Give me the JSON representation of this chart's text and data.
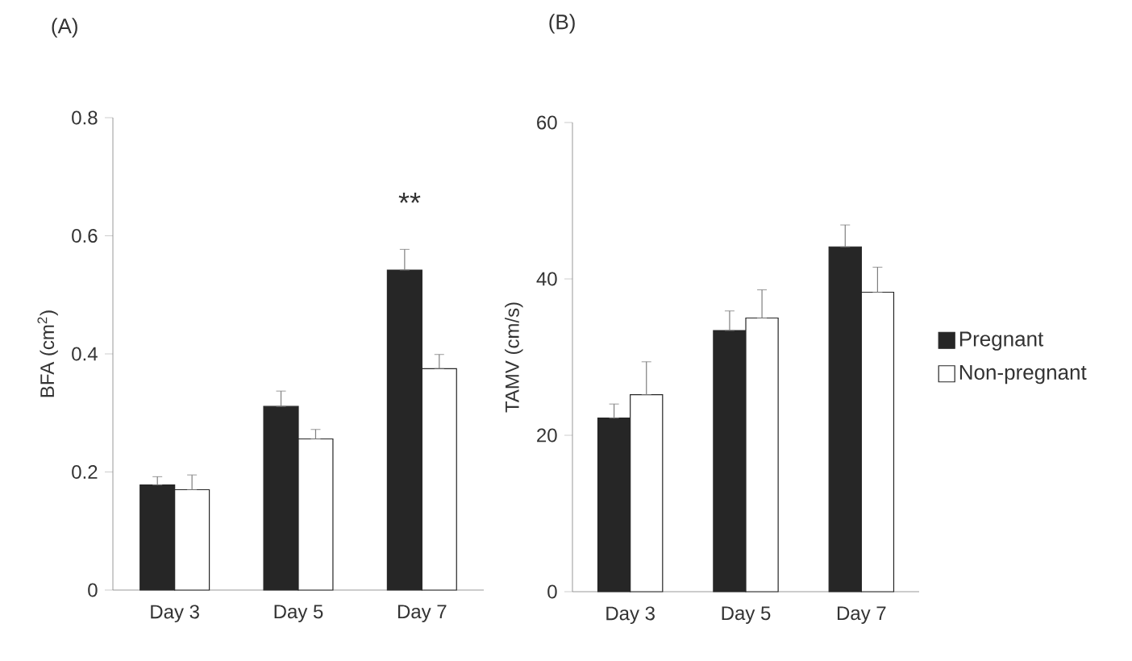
{
  "chart_data": [
    {
      "type": "bar",
      "title": "(A)",
      "ylabel": "BFA (cm$^{2}$)",
      "categories": [
        "Day 3",
        "Day 5",
        "Day 7"
      ],
      "ylim": [
        0,
        0.8
      ],
      "yticks": [
        0,
        0.2,
        0.4,
        0.6,
        0.8
      ],
      "series": [
        {
          "color": "#262626",
          "values": [
            0.178,
            0.311,
            0.542
          ],
          "errors": [
            [
              0.178,
              0.192
            ],
            [
              0.311,
              0.337
            ],
            [
              0.542,
              0.577
            ]
          ]
        },
        {
          "color": "#ffffff",
          "values": [
            0.17,
            0.256,
            0.375
          ],
          "errors": [
            [
              0.17,
              0.195
            ],
            [
              0.256,
              0.272
            ],
            [
              0.375,
              0.399
            ]
          ]
        }
      ],
      "annotations": [
        "**"
      ]
    },
    {
      "type": "bar",
      "title": "(B)",
      "ylabel": "TAMV (cm/s)",
      "categories": [
        "Day 3",
        "Day 5",
        "Day 7"
      ],
      "ylim": [
        0,
        60
      ],
      "yticks": [
        0,
        20,
        40,
        60
      ],
      "legend": "right",
      "series": [
        {
          "name": "Pregnant",
          "color": "#262626",
          "values": [
            22.2,
            33.4,
            44.1
          ],
          "errors": [
            [
              22.2,
              24.0
            ],
            [
              33.4,
              35.9
            ],
            [
              44.1,
              46.9
            ]
          ]
        },
        {
          "name": "Non-pregnant",
          "color": "#ffffff",
          "values": [
            25.2,
            35.0,
            38.3
          ],
          "errors": [
            [
              25.2,
              29.4
            ],
            [
              35.0,
              38.6
            ],
            [
              38.3,
              41.5
            ]
          ]
        }
      ]
    }
  ]
}
